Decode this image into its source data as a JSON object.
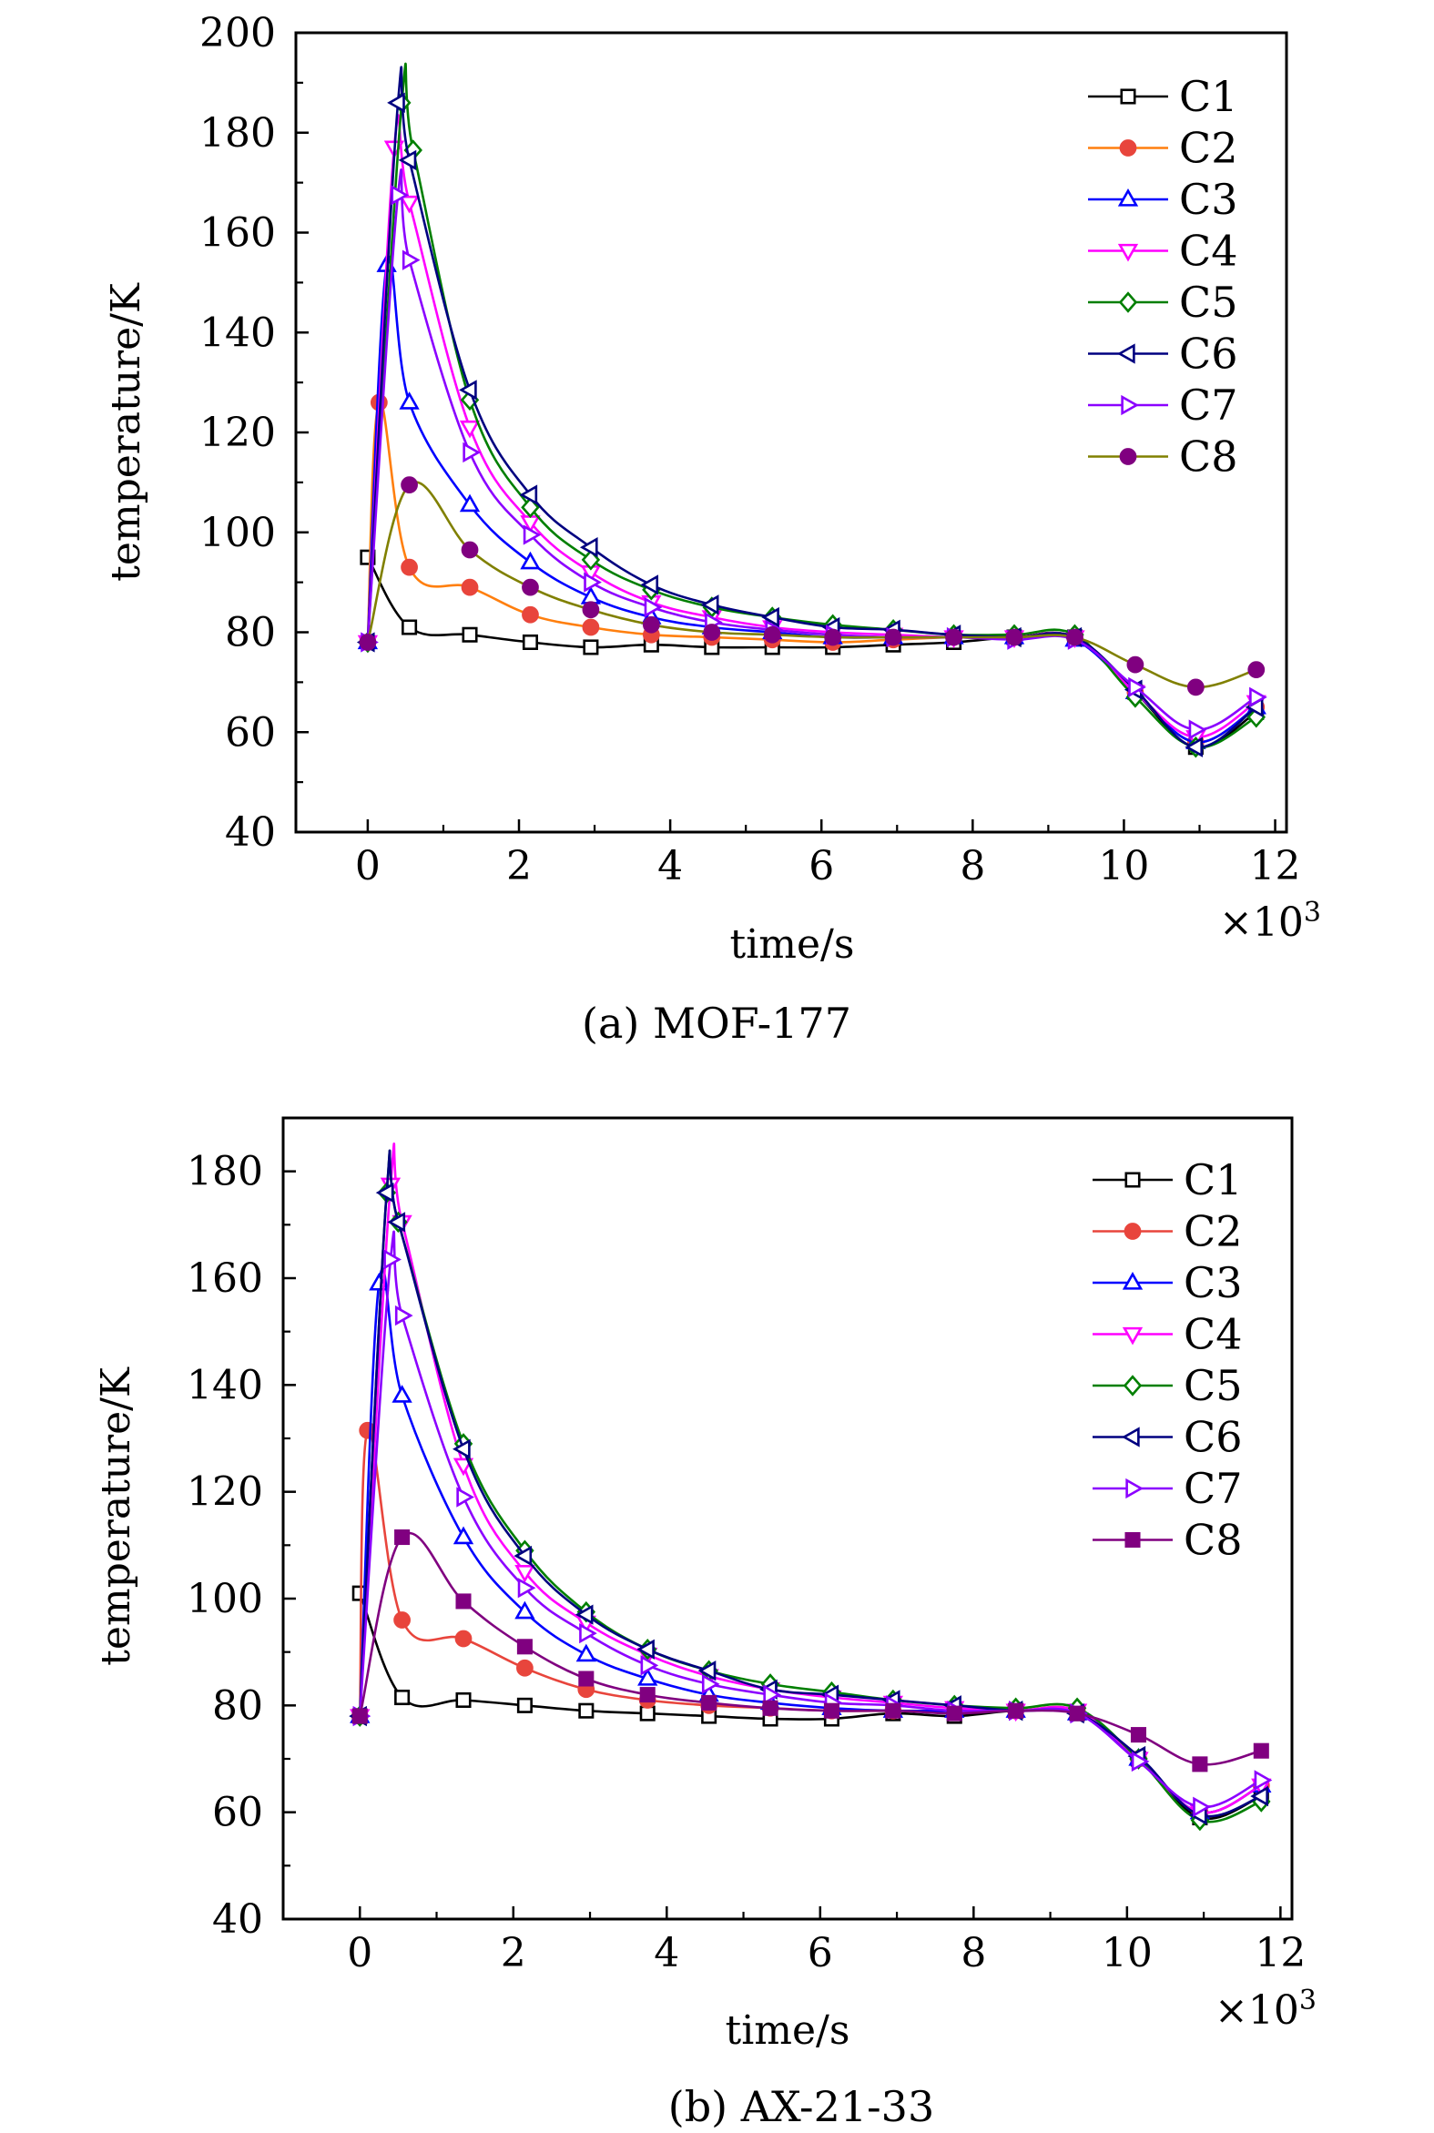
{
  "chart_data": [
    {
      "type": "line",
      "caption": "(a) MOF-177",
      "xlabel": "time/s",
      "ylabel": "temperature/K",
      "x_multiplier": "×10",
      "x_multiplier_exp": "3",
      "xlim": [
        -0.95,
        12.15
      ],
      "ylim": [
        40,
        200
      ],
      "xticks": [
        0,
        2,
        4,
        6,
        8,
        10,
        12
      ],
      "yticks": [
        40,
        60,
        80,
        100,
        120,
        140,
        160,
        180,
        200
      ],
      "legend_position": "top-right",
      "series": [
        {
          "name": "C1",
          "color": "#000000",
          "marker": "square-open",
          "x": [
            0,
            0.55,
            1.35,
            2.15,
            2.95,
            3.75,
            4.55,
            5.35,
            6.15,
            6.95,
            7.75,
            8.55,
            9.35,
            10.15,
            10.95,
            11.75
          ],
          "y": [
            95,
            81,
            79.5,
            78,
            77,
            77.5,
            77,
            77,
            77,
            77.5,
            78,
            79,
            79,
            68,
            57,
            64
          ]
        },
        {
          "name": "C2",
          "color": "#ff7f0e",
          "marker": "circle",
          "marker_color": "#e8453c",
          "x": [
            0,
            0.15,
            0.55,
            1.35,
            2.15,
            2.95,
            3.75,
            4.55,
            5.35,
            6.15,
            6.95,
            7.75,
            8.55,
            9.35,
            10.15,
            10.95,
            11.75
          ],
          "y": [
            78,
            126,
            93,
            89,
            83.5,
            81,
            79.5,
            79,
            78.5,
            78,
            78.5,
            79,
            79,
            79,
            68,
            58,
            65
          ]
        },
        {
          "name": "C3",
          "color": "#0000ff",
          "marker": "triangle-up-open",
          "x": [
            0,
            0.25,
            0.55,
            1.35,
            2.15,
            2.95,
            3.75,
            4.55,
            5.35,
            6.15,
            6.95,
            7.75,
            8.55,
            9.35,
            10.15,
            10.95,
            11.75
          ],
          "y": [
            78,
            153.5,
            126,
            105.5,
            94,
            87,
            83,
            81,
            80,
            79,
            79,
            79,
            79,
            78.5,
            68,
            58,
            65
          ]
        },
        {
          "name": "C4",
          "color": "#ff00ff",
          "marker": "triangle-down-open",
          "x": [
            0,
            0.35,
            0.55,
            1.35,
            2.15,
            2.95,
            3.75,
            4.55,
            5.35,
            6.15,
            6.95,
            7.75,
            8.55,
            9.35,
            10.15,
            10.95,
            11.75
          ],
          "y": [
            78,
            177,
            166,
            121,
            102,
            92,
            86,
            83,
            81,
            80,
            79.5,
            79,
            79,
            79,
            68,
            59,
            66
          ]
        },
        {
          "name": "C5",
          "color": "#007f00",
          "marker": "diamond-open",
          "x": [
            0,
            0.45,
            0.6,
            1.35,
            2.15,
            2.95,
            3.75,
            4.55,
            5.35,
            6.15,
            6.95,
            7.75,
            8.55,
            9.35,
            10.15,
            10.95,
            11.75
          ],
          "y": [
            78,
            186,
            176.5,
            126.5,
            105,
            94.5,
            88.5,
            85,
            83,
            81.5,
            80.5,
            79.5,
            79.5,
            79.5,
            67,
            57,
            63
          ]
        },
        {
          "name": "C6",
          "color": "#000080",
          "marker": "triangle-left-open",
          "x": [
            0,
            0.4,
            0.55,
            1.35,
            2.15,
            2.95,
            3.75,
            4.55,
            5.35,
            6.15,
            6.95,
            7.75,
            8.55,
            9.35,
            10.15,
            10.95,
            11.75
          ],
          "y": [
            78,
            186,
            174.5,
            128.5,
            107.5,
            97,
            89.5,
            85.5,
            83,
            81,
            80.5,
            79.5,
            79,
            79,
            68.5,
            57,
            65
          ]
        },
        {
          "name": "C7",
          "color": "#8b00ff",
          "marker": "triangle-right-open",
          "x": [
            0,
            0.4,
            0.55,
            1.35,
            2.15,
            2.95,
            3.75,
            4.55,
            5.35,
            6.15,
            6.95,
            7.75,
            8.55,
            9.35,
            10.15,
            10.95,
            11.75
          ],
          "y": [
            78,
            167.5,
            154.5,
            116,
            99.5,
            90,
            85,
            82,
            80.5,
            79.5,
            79,
            79,
            78.5,
            78.5,
            69,
            60.5,
            67
          ]
        },
        {
          "name": "C8",
          "color": "#808000",
          "marker": "circle",
          "marker_color": "#800080",
          "x": [
            0,
            0.55,
            1.35,
            2.15,
            2.95,
            3.75,
            4.55,
            5.35,
            6.15,
            6.95,
            7.75,
            8.55,
            9.35,
            10.15,
            10.95,
            11.75
          ],
          "y": [
            78,
            109.5,
            96.5,
            89,
            84.5,
            81.5,
            80,
            79.5,
            79,
            79,
            79,
            79,
            79,
            73.5,
            69,
            72.5
          ]
        }
      ]
    },
    {
      "type": "line",
      "caption": "(b) AX-21-33",
      "xlabel": "time/s",
      "ylabel": "temperature/K",
      "x_multiplier": "×10",
      "x_multiplier_exp": "3",
      "xlim": [
        -1.0,
        12.15
      ],
      "ylim": [
        40,
        190
      ],
      "xticks": [
        0,
        2,
        4,
        6,
        8,
        10,
        12
      ],
      "yticks": [
        40,
        60,
        80,
        100,
        120,
        140,
        160,
        180
      ],
      "legend_position": "top-right",
      "series": [
        {
          "name": "C1",
          "color": "#000000",
          "marker": "square-open",
          "x": [
            0,
            0.55,
            1.35,
            2.15,
            2.95,
            3.75,
            4.55,
            5.35,
            6.15,
            6.95,
            7.75,
            8.55,
            9.35,
            10.15,
            10.95,
            11.75
          ],
          "y": [
            101,
            81.5,
            81,
            80,
            79,
            78.5,
            78,
            77.5,
            77.5,
            78.5,
            78,
            79,
            78.5,
            70,
            59,
            63
          ]
        },
        {
          "name": "C2",
          "color": "#e8453c",
          "marker": "circle",
          "x": [
            0,
            0.1,
            0.55,
            1.35,
            2.15,
            2.95,
            3.75,
            4.55,
            5.35,
            6.15,
            6.95,
            7.75,
            8.55,
            9.35,
            10.15,
            10.95,
            11.75
          ],
          "y": [
            78,
            131.5,
            96,
            92.5,
            87,
            83,
            81,
            80,
            79.5,
            79,
            79,
            79,
            79,
            79,
            70,
            60,
            65
          ]
        },
        {
          "name": "C3",
          "color": "#0000ff",
          "marker": "triangle-up-open",
          "x": [
            0,
            0.25,
            0.55,
            1.35,
            2.15,
            2.95,
            3.75,
            4.55,
            5.35,
            6.15,
            6.95,
            7.75,
            8.55,
            9.35,
            10.15,
            10.95,
            11.75
          ],
          "y": [
            78,
            159,
            138,
            111.5,
            97.5,
            89.5,
            85,
            82,
            80.5,
            79.5,
            79,
            79,
            79,
            78.5,
            70,
            60,
            65
          ]
        },
        {
          "name": "C4",
          "color": "#ff00ff",
          "marker": "triangle-down-open",
          "x": [
            0,
            0.4,
            0.55,
            1.35,
            2.15,
            2.95,
            3.75,
            4.55,
            5.35,
            6.15,
            6.95,
            7.75,
            8.55,
            9.35,
            10.15,
            10.95,
            11.75
          ],
          "y": [
            78,
            177.5,
            170.5,
            125,
            105,
            95.5,
            89.5,
            85.5,
            83,
            81.5,
            80.5,
            79.5,
            79,
            79,
            70,
            60,
            65
          ]
        },
        {
          "name": "C5",
          "color": "#007f00",
          "marker": "diamond-open",
          "x": [
            0,
            0.35,
            0.5,
            1.35,
            2.15,
            2.95,
            3.75,
            4.55,
            5.35,
            6.15,
            6.95,
            7.75,
            8.55,
            9.35,
            10.15,
            10.95,
            11.75
          ],
          "y": [
            78,
            176,
            170.5,
            129,
            109,
            97.5,
            90.5,
            86.5,
            84,
            82.5,
            81,
            80,
            79.5,
            79.5,
            70,
            58.5,
            62
          ]
        },
        {
          "name": "C6",
          "color": "#000080",
          "marker": "triangle-left-open",
          "x": [
            0,
            0.35,
            0.5,
            1.35,
            2.15,
            2.95,
            3.75,
            4.55,
            5.35,
            6.15,
            6.95,
            7.75,
            8.55,
            9.35,
            10.15,
            10.95,
            11.75
          ],
          "y": [
            78,
            176,
            170.5,
            128,
            108,
            97,
            90.5,
            86.5,
            83,
            82,
            81,
            80,
            79,
            78.5,
            70.5,
            59.5,
            63
          ]
        },
        {
          "name": "C7",
          "color": "#8b00ff",
          "marker": "triangle-right-open",
          "x": [
            0,
            0.4,
            0.55,
            1.35,
            2.15,
            2.95,
            3.75,
            4.55,
            5.35,
            6.15,
            6.95,
            7.75,
            8.55,
            9.35,
            10.15,
            10.95,
            11.75
          ],
          "y": [
            78,
            163.5,
            153,
            119,
            102,
            93.5,
            87.5,
            84,
            82,
            80.5,
            80,
            79,
            79,
            78.5,
            69.5,
            61,
            66
          ]
        },
        {
          "name": "C8",
          "color": "#800080",
          "marker": "square",
          "x": [
            0,
            0.55,
            1.35,
            2.15,
            2.95,
            3.75,
            4.55,
            5.35,
            6.15,
            6.95,
            7.75,
            8.55,
            9.35,
            10.15,
            10.95,
            11.75
          ],
          "y": [
            78,
            111.5,
            99.5,
            91,
            85,
            82,
            80.5,
            79.5,
            79,
            79,
            78.5,
            79,
            78.5,
            74.5,
            69,
            71.5
          ]
        }
      ]
    }
  ]
}
